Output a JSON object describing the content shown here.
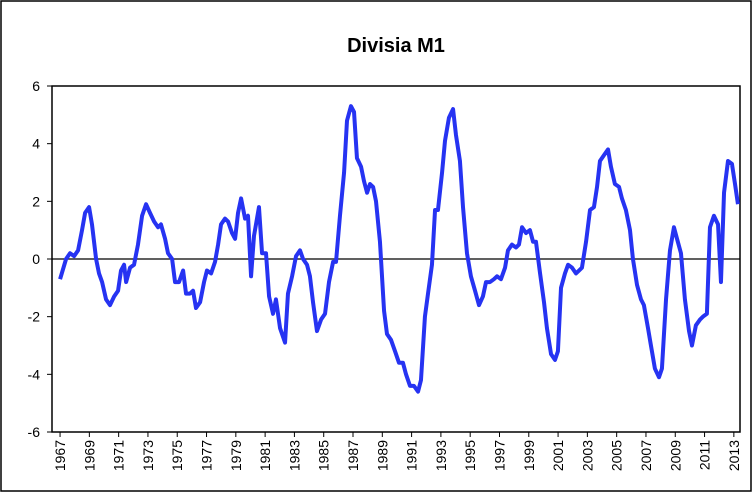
{
  "chart_data": {
    "type": "line",
    "title": "Divisia M1",
    "x": [
      1967.0,
      1967.41,
      1967.68,
      1967.96,
      1968.23,
      1968.5,
      1968.71,
      1968.98,
      1969.18,
      1969.46,
      1969.66,
      1969.87,
      1970.14,
      1970.41,
      1970.69,
      1970.96,
      1971.16,
      1971.37,
      1971.51,
      1971.78,
      1972.05,
      1972.32,
      1972.6,
      1972.87,
      1973.14,
      1973.42,
      1973.69,
      1973.89,
      1974.17,
      1974.37,
      1974.65,
      1974.85,
      1975.12,
      1975.4,
      1975.6,
      1975.87,
      1976.08,
      1976.28,
      1976.56,
      1976.83,
      1977.03,
      1977.31,
      1977.58,
      1977.79,
      1977.99,
      1978.26,
      1978.47,
      1978.74,
      1978.95,
      1979.15,
      1979.36,
      1979.63,
      1979.83,
      1980.04,
      1980.24,
      1980.58,
      1980.79,
      1981.06,
      1981.27,
      1981.54,
      1981.74,
      1982.02,
      1982.36,
      1982.56,
      1982.84,
      1983.11,
      1983.38,
      1983.59,
      1983.86,
      1984.06,
      1984.27,
      1984.54,
      1984.82,
      1985.09,
      1985.36,
      1985.64,
      1985.84,
      1986.11,
      1986.39,
      1986.59,
      1986.86,
      1987.07,
      1987.27,
      1987.55,
      1987.75,
      1987.96,
      1988.16,
      1988.37,
      1988.57,
      1988.84,
      1989.12,
      1989.32,
      1989.59,
      1989.87,
      1990.14,
      1990.41,
      1990.62,
      1990.89,
      1991.16,
      1991.44,
      1991.64,
      1991.91,
      1992.12,
      1992.39,
      1992.6,
      1992.8,
      1993.08,
      1993.28,
      1993.55,
      1993.83,
      1994.03,
      1994.3,
      1994.51,
      1994.78,
      1995.05,
      1995.33,
      1995.6,
      1995.87,
      1996.08,
      1996.35,
      1996.62,
      1996.83,
      1997.1,
      1997.38,
      1997.58,
      1997.85,
      1998.13,
      1998.33,
      1998.54,
      1998.81,
      1999.08,
      1999.29,
      1999.49,
      1999.77,
      2000.04,
      2000.24,
      2000.52,
      2000.79,
      2000.99,
      2001.2,
      2001.47,
      2001.68,
      2001.95,
      2002.22,
      2002.43,
      2002.63,
      2002.91,
      2003.18,
      2003.45,
      2003.66,
      2003.86,
      2004.13,
      2004.41,
      2004.61,
      2004.88,
      2005.16,
      2005.36,
      2005.63,
      2005.91,
      2006.11,
      2006.39,
      2006.66,
      2006.86,
      2007.14,
      2007.34,
      2007.61,
      2007.89,
      2008.09,
      2008.37,
      2008.64,
      2008.91,
      2009.12,
      2009.39,
      2009.66,
      2009.94,
      2010.14,
      2010.41,
      2010.69,
      2010.89,
      2011.16,
      2011.37,
      2011.64,
      2011.92,
      2012.12,
      2012.33,
      2012.6,
      2012.87,
      2013.08,
      2013.28
    ],
    "series": [
      {
        "color": "#2633f2",
        "values": [
          -0.7,
          0.0,
          0.2,
          0.1,
          0.3,
          1.0,
          1.6,
          1.8,
          1.2,
          0.0,
          -0.5,
          -0.8,
          -1.4,
          -1.6,
          -1.3,
          -1.1,
          -0.4,
          -0.2,
          -0.8,
          -0.3,
          -0.2,
          0.5,
          1.5,
          1.9,
          1.6,
          1.3,
          1.1,
          1.2,
          0.7,
          0.2,
          0.0,
          -0.8,
          -0.8,
          -0.4,
          -1.2,
          -1.2,
          -1.1,
          -1.7,
          -1.5,
          -0.8,
          -0.4,
          -0.5,
          -0.1,
          0.5,
          1.2,
          1.4,
          1.3,
          0.9,
          0.7,
          1.6,
          2.1,
          1.4,
          1.5,
          -0.6,
          0.8,
          1.8,
          0.2,
          0.2,
          -1.3,
          -1.9,
          -1.4,
          -2.4,
          -2.9,
          -1.2,
          -0.6,
          0.1,
          0.3,
          0.0,
          -0.2,
          -0.6,
          -1.5,
          -2.5,
          -2.1,
          -1.9,
          -0.8,
          -0.1,
          -0.1,
          1.5,
          3.0,
          4.8,
          5.3,
          5.1,
          3.5,
          3.2,
          2.7,
          2.3,
          2.6,
          2.5,
          2.0,
          0.6,
          -1.8,
          -2.6,
          -2.8,
          -3.2,
          -3.6,
          -3.6,
          -4.0,
          -4.4,
          -4.4,
          -4.6,
          -4.2,
          -2.0,
          -1.2,
          -0.2,
          1.7,
          1.7,
          3.0,
          4.1,
          4.9,
          5.2,
          4.3,
          3.4,
          1.8,
          0.2,
          -0.6,
          -1.1,
          -1.6,
          -1.3,
          -0.8,
          -0.8,
          -0.7,
          -0.6,
          -0.7,
          -0.3,
          0.3,
          0.5,
          0.4,
          0.5,
          1.1,
          0.9,
          1.0,
          0.6,
          0.6,
          -0.5,
          -1.5,
          -2.4,
          -3.3,
          -3.5,
          -3.2,
          -1.0,
          -0.5,
          -0.2,
          -0.3,
          -0.5,
          -0.4,
          -0.3,
          0.6,
          1.7,
          1.8,
          2.5,
          3.4,
          3.6,
          3.8,
          3.2,
          2.6,
          2.5,
          2.1,
          1.7,
          1.0,
          0.0,
          -0.9,
          -1.4,
          -1.6,
          -2.4,
          -3.0,
          -3.8,
          -4.1,
          -3.8,
          -1.4,
          0.3,
          1.1,
          0.7,
          0.2,
          -1.4,
          -2.5,
          -3.0,
          -2.3,
          -2.1,
          -2.0,
          -1.9,
          1.1,
          1.5,
          1.2,
          -0.8,
          2.3,
          3.4,
          3.3,
          2.6,
          1.9
        ]
      }
    ],
    "xlim": [
      1966.45,
      2013.42
    ],
    "xticks": [
      1967,
      1969,
      1971,
      1973,
      1975,
      1977,
      1979,
      1981,
      1983,
      1985,
      1987,
      1989,
      1991,
      1993,
      1995,
      1997,
      1999,
      2001,
      2003,
      2005,
      2007,
      2009,
      2011,
      2013
    ],
    "ylim": [
      -6,
      6
    ],
    "yticks": [
      -6,
      -4,
      -2,
      0,
      2,
      4,
      6
    ]
  }
}
